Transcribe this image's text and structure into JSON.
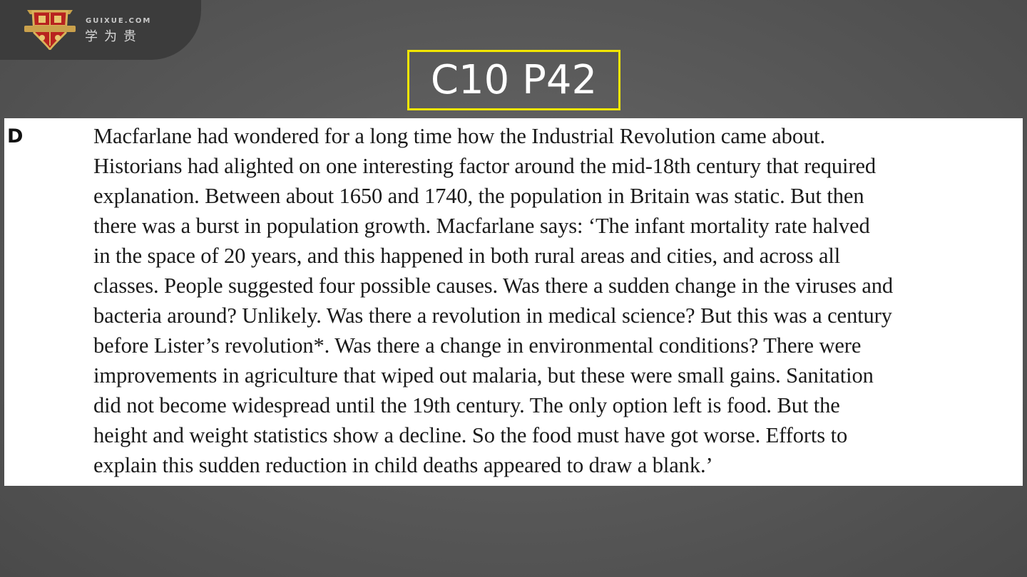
{
  "logo": {
    "domain": "GUIXUE.COM",
    "brand_cn": "学为贵",
    "icon": "shield-crest-icon"
  },
  "slide": {
    "title": "C10 P42",
    "title_border_color": "#f2e600"
  },
  "passage": {
    "paragraph_letter": "D",
    "lines": [
      "Macfarlane had wondered for a long time how the Industrial Revolution came about.",
      "Historians had alighted on one interesting factor around the mid-18th century that required",
      "explanation. Between about 1650 and 1740, the population in Britain was static. But then",
      "there was a burst in population growth. Macfarlane says: ‘The infant mortality rate halved",
      "in the space of 20 years, and this happened in both rural areas and cities, and across all",
      "classes. People suggested four possible causes. Was there a sudden change in the viruses and",
      "bacteria around? Unlikely. Was there a revolution in medical science? But this was a century",
      "before Lister’s revolution*. Was there a change in environmental conditions? There were",
      "improvements in agriculture that wiped out malaria, but these were small gains. Sanitation",
      "did not become widespread until the 19th century. The only option left is food. But the",
      "height and weight statistics show a decline. So the food must have got worse. Efforts to",
      "explain this sudden reduction in child deaths appeared to draw a blank.’"
    ]
  }
}
